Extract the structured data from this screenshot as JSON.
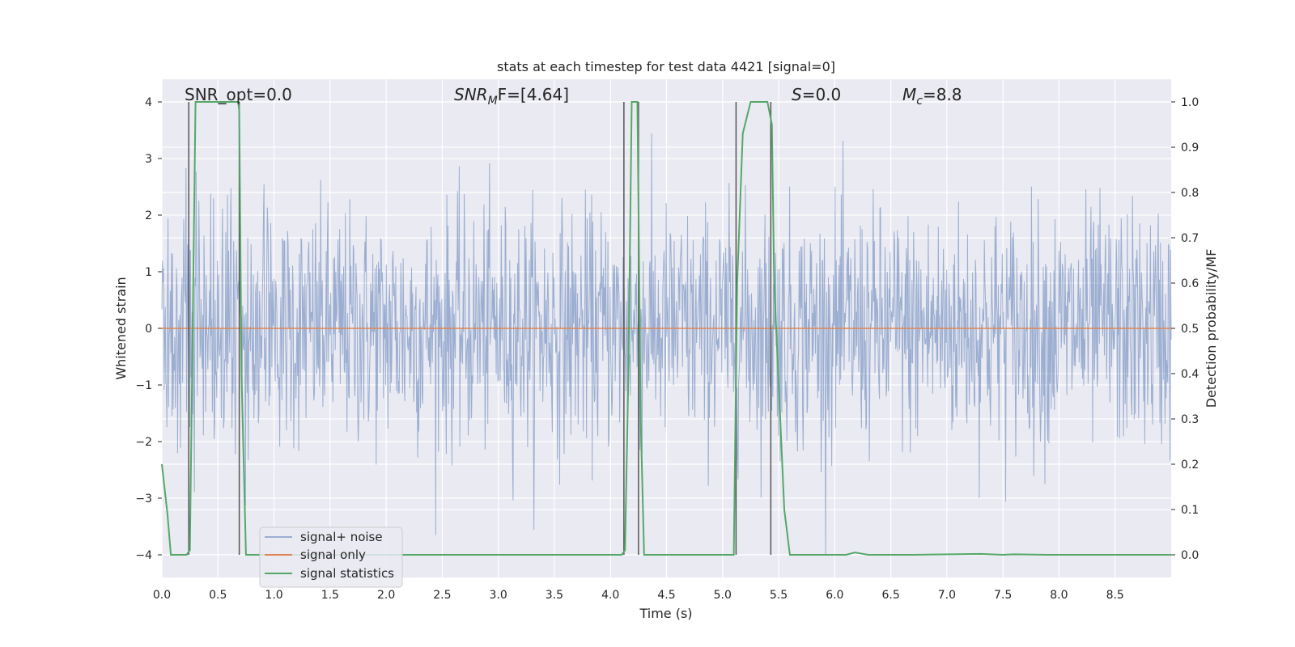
{
  "chart_data": {
    "type": "line",
    "title": "stats at each timestep for test data 4421 [signal=0]",
    "xlabel": "Time (s)",
    "ylabel": "Whitened strain",
    "y2label": "Detection probability/MF",
    "xlim": [
      0.0,
      9.0
    ],
    "ylim": [
      -4.4,
      4.4
    ],
    "y2lim": [
      -0.05,
      1.05
    ],
    "xticks": [
      "0.0",
      "0.5",
      "1.0",
      "1.5",
      "2.0",
      "2.5",
      "3.0",
      "3.5",
      "4.0",
      "4.5",
      "5.0",
      "5.5",
      "6.0",
      "6.5",
      "7.0",
      "7.5",
      "8.0",
      "8.5"
    ],
    "yticks": [
      "4",
      "3",
      "2",
      "1",
      "0",
      "−1",
      "−2",
      "−3",
      "−4"
    ],
    "y2ticks": [
      "1.0",
      "0.9",
      "0.8",
      "0.7",
      "0.6",
      "0.5",
      "0.4",
      "0.3",
      "0.2",
      "0.1",
      "0.0"
    ],
    "annotations": {
      "snr_opt": "SNR_opt=0.0",
      "snr_mf_sym": "SNR",
      "snr_mf_sub": "M",
      "snr_mf_rest": "F=[4.64]",
      "s_sym": "S",
      "s_rest": "=0.0",
      "mc_sym": "M",
      "mc_sub": "c",
      "mc_rest": "=8.8"
    },
    "legend": {
      "position": "lower-left",
      "entries": [
        "signal+ noise",
        "signal only",
        "signal statistics"
      ]
    },
    "series": [
      {
        "name": "signal+ noise",
        "color": "#4c72b0",
        "description": "whitened strain noise, approx. ±1.6 envelope with peaks to ±4",
        "envelope": 1.6,
        "peak_max": 4.0,
        "peak_min": -4.0
      },
      {
        "name": "signal only",
        "color": "#dd8452",
        "values": "zero"
      },
      {
        "name": "signal statistics",
        "color": "#55a868",
        "x": [
          0.0,
          0.05,
          0.08,
          0.22,
          0.25,
          0.3,
          0.68,
          0.69,
          0.71,
          0.75,
          4.1,
          4.13,
          4.16,
          4.19,
          4.24,
          4.27,
          4.3,
          5.1,
          5.13,
          5.18,
          5.25,
          5.4,
          5.44,
          5.46,
          5.55,
          5.6,
          6.1,
          6.18,
          6.3,
          6.7,
          7.3,
          7.5,
          7.6,
          7.9,
          8.2,
          9.0
        ],
        "values": [
          0.2,
          0.09,
          0.0,
          0.0,
          0.01,
          1.0,
          1.0,
          0.98,
          0.4,
          0.0,
          0.0,
          0.01,
          0.4,
          1.0,
          1.0,
          0.3,
          0.0,
          0.0,
          0.6,
          0.93,
          1.0,
          1.0,
          0.95,
          0.6,
          0.1,
          0.0,
          0.0,
          0.005,
          0.0,
          0.0,
          0.002,
          0.0,
          0.001,
          0.0,
          0.0,
          0.0
        ]
      }
    ],
    "vlines": [
      0.24,
      0.69,
      4.12,
      4.25,
      5.12,
      5.43
    ]
  }
}
